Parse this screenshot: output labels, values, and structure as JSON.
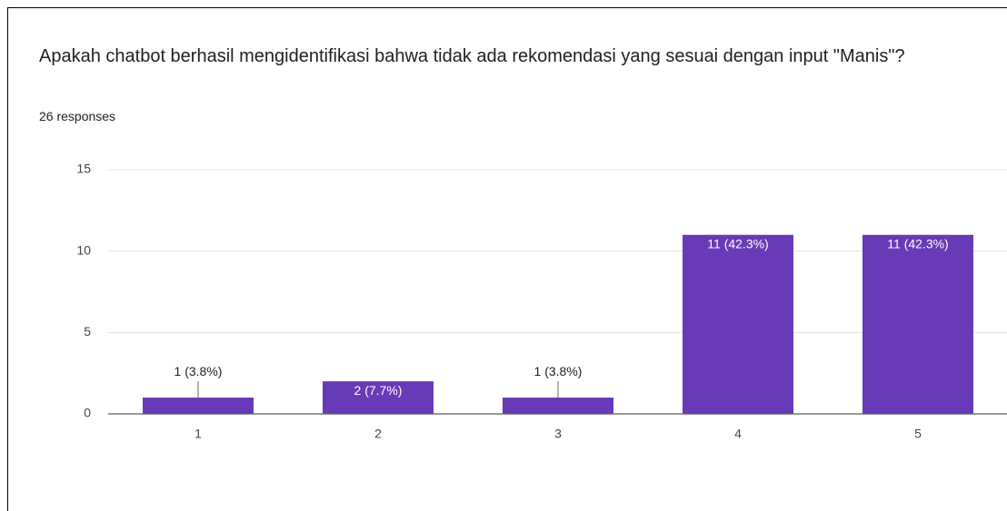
{
  "chart_data": {
    "type": "bar",
    "title": "Apakah chatbot berhasil mengidentifikasi bahwa tidak ada rekomendasi yang sesuai dengan input \"Manis\"?",
    "subtitle": "26 responses",
    "categories": [
      "1",
      "2",
      "3",
      "4",
      "5"
    ],
    "values": [
      1,
      2,
      1,
      11,
      11
    ],
    "value_labels": [
      "1 (3.8%)",
      "2 (7.7%)",
      "1 (3.8%)",
      "11 (42.3%)",
      "11 (42.3%)"
    ],
    "color": "#673ab7",
    "ylim": [
      0,
      15
    ],
    "yticks": [
      0,
      5,
      10,
      15
    ],
    "grid": true
  }
}
